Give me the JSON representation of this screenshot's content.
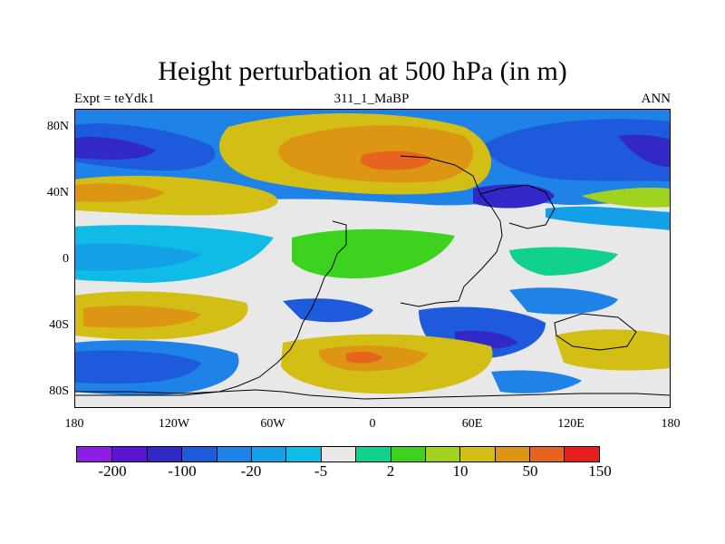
{
  "title": "Height perturbation at 500 hPa (in m)",
  "left_label": "Expt = teYdk1",
  "center_label": "311_1_MaBP",
  "right_label": "ANN",
  "y_ticks": [
    "80N",
    "40N",
    "0",
    "40S",
    "80S"
  ],
  "x_ticks": [
    "180",
    "120W",
    "60W",
    "0",
    "60E",
    "120E",
    "180"
  ],
  "colorbar": {
    "colors": [
      "#8c1ee6",
      "#5a14d2",
      "#3228c8",
      "#1e5adc",
      "#1e82e6",
      "#14a0e6",
      "#10bce6",
      "#e8e8e8",
      "#10d28c",
      "#3cd21e",
      "#a0d21e",
      "#d2be14",
      "#dc9614",
      "#e6641e",
      "#e61e1e"
    ],
    "labels": [
      "-200",
      "-100",
      "-20",
      "-5",
      "2",
      "10",
      "50",
      "150"
    ]
  },
  "colors": {
    "deep_neg": "#3228c8",
    "neg": "#1e5adc",
    "mid_neg": "#1e82e6",
    "light_neg": "#14a0e6",
    "cyan": "#10bce6",
    "neutral": "#e8e8e8",
    "light_pos": "#10d28c",
    "pos": "#3cd21e",
    "yellow_green": "#a0d21e",
    "gold": "#d2be14",
    "orange": "#dc9614",
    "red_orange": "#e6641e"
  }
}
